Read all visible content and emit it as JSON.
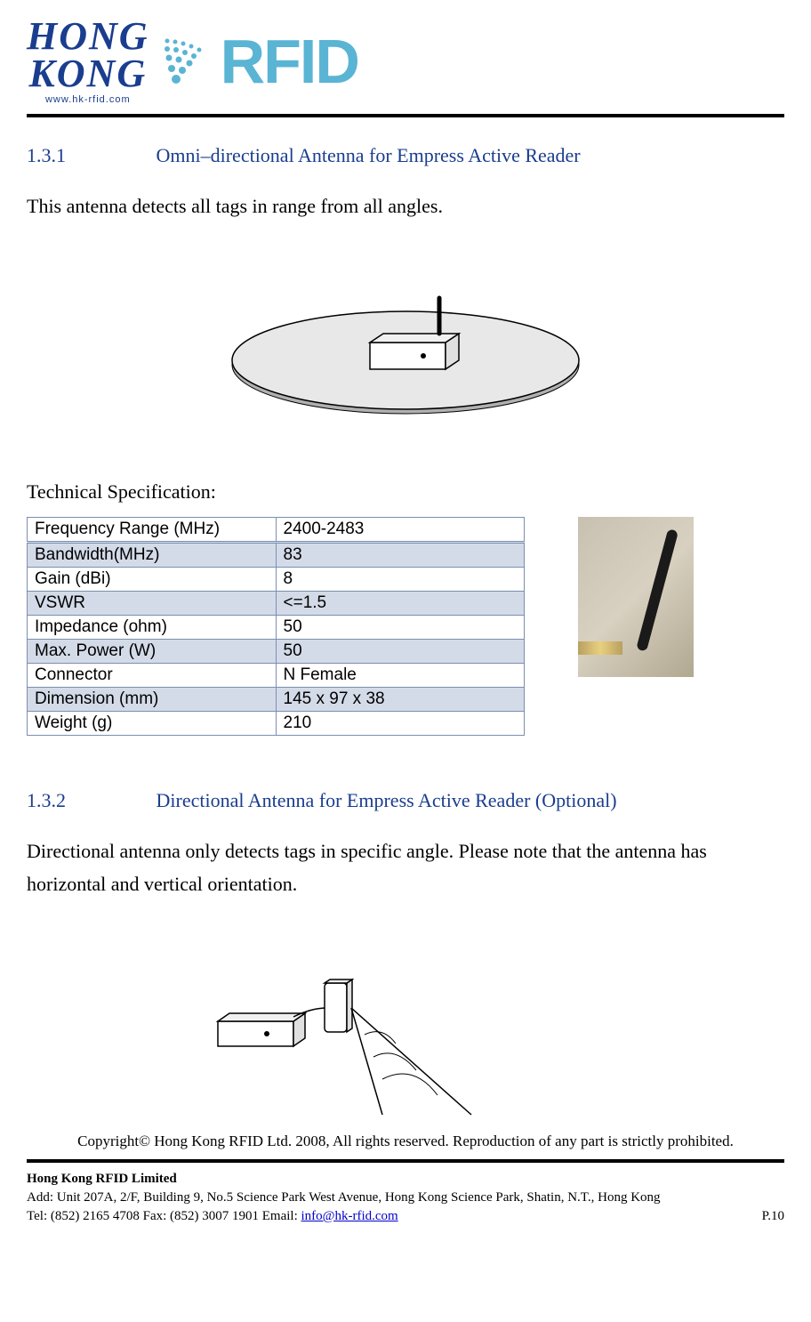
{
  "logo": {
    "text_hong": "HONG",
    "text_kong": "KONG",
    "text_rfid": "RFID",
    "url": "www.hk-rfid.com"
  },
  "section1": {
    "number": "1.3.1",
    "title": "Omni–directional Antenna for Empress Active Reader",
    "description": "This antenna detects all tags in range from all angles.",
    "spec_label": "Technical Specification:",
    "heading_color": "#1a3d8f"
  },
  "spec_table": {
    "rows": [
      [
        "Frequency Range (MHz)",
        "2400-2483"
      ],
      [
        "Bandwidth(MHz)",
        "83"
      ],
      [
        "Gain (dBi)",
        "8"
      ],
      [
        "VSWR",
        "<=1.5"
      ],
      [
        "Impedance (ohm)",
        "50"
      ],
      [
        "Max. Power (W)",
        "50"
      ],
      [
        "Connector",
        "N Female"
      ],
      [
        "Dimension (mm)",
        "145 x 97 x 38"
      ],
      [
        "Weight (g)",
        "210"
      ]
    ],
    "border_color": "#7a8fb0",
    "shade_color": "#d4dbe8"
  },
  "section2": {
    "number": "1.3.2",
    "title": "Directional Antenna for Empress Active Reader (Optional)",
    "description": "Directional antenna only detects tags in specific angle. Please note that the antenna has horizontal and vertical orientation."
  },
  "copyright": "Copyright© Hong Kong RFID Ltd. 2008, All rights reserved. Reproduction of any part is strictly prohibited.",
  "footer": {
    "company": "Hong Kong RFID Limited",
    "address": "Add: Unit 207A, 2/F, Building 9, No.5 Science Park West Avenue, Hong Kong Science Park, Shatin, N.T., Hong Kong",
    "tel_label": "Tel: (852) 2165 4708   Fax: (852) 3007 1901   Email: ",
    "email": "info@hk-rfid.com",
    "page": "P.10"
  }
}
